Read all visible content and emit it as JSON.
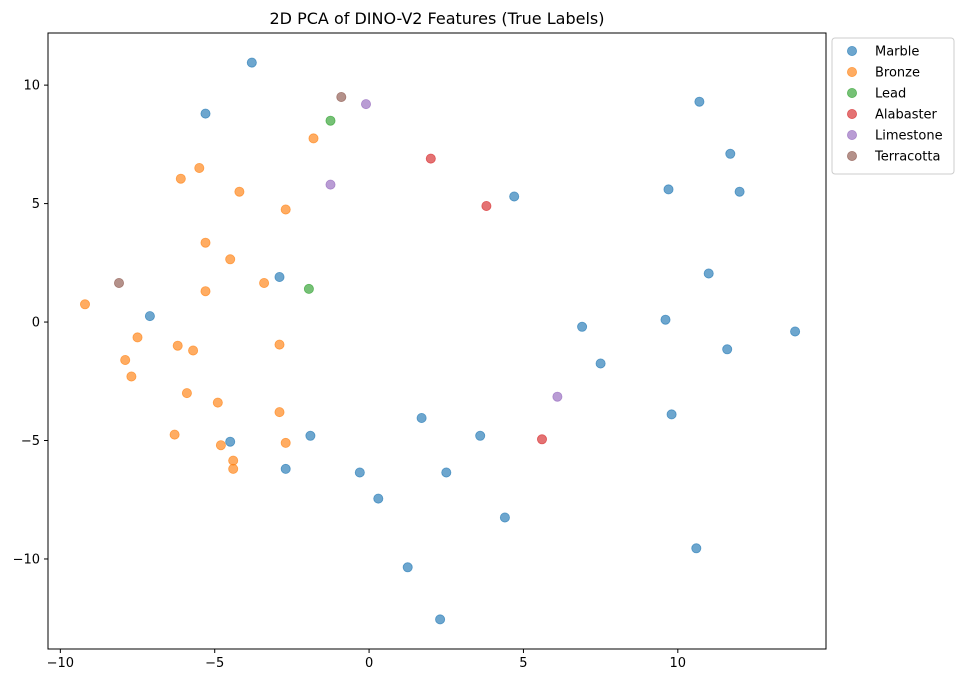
{
  "chart_data": {
    "type": "scatter",
    "title": "2D PCA of DINO-V2 Features (True Labels)",
    "xlabel": "",
    "ylabel": "",
    "xlim": [
      -10.4,
      14.8
    ],
    "ylim": [
      -13.8,
      12.2
    ],
    "xticks": [
      -10,
      -5,
      0,
      5,
      10
    ],
    "yticks": [
      -10,
      -5,
      0,
      5,
      10
    ],
    "xtick_labels": [
      "−10",
      "−5",
      "0",
      "5",
      "10"
    ],
    "ytick_labels": [
      "−10",
      "−5",
      "0",
      "5",
      "10"
    ],
    "grid": false,
    "legend_position": "outside top-right",
    "series": [
      {
        "name": "Marble",
        "color": "#1f77b4",
        "points": [
          [
            -3.8,
            10.95
          ],
          [
            -5.3,
            8.8
          ],
          [
            10.7,
            9.3
          ],
          [
            11.7,
            7.1
          ],
          [
            9.7,
            5.6
          ],
          [
            12.0,
            5.5
          ],
          [
            4.7,
            5.3
          ],
          [
            -2.9,
            1.9
          ],
          [
            11.0,
            2.05
          ],
          [
            -7.1,
            0.25
          ],
          [
            6.9,
            -0.2
          ],
          [
            9.6,
            0.1
          ],
          [
            13.8,
            -0.4
          ],
          [
            7.5,
            -1.75
          ],
          [
            11.6,
            -1.15
          ],
          [
            1.7,
            -4.05
          ],
          [
            9.8,
            -3.9
          ],
          [
            -4.5,
            -5.05
          ],
          [
            -1.9,
            -4.8
          ],
          [
            3.6,
            -4.8
          ],
          [
            -2.7,
            -6.2
          ],
          [
            -0.3,
            -6.35
          ],
          [
            2.5,
            -6.35
          ],
          [
            0.3,
            -7.45
          ],
          [
            4.4,
            -8.25
          ],
          [
            10.6,
            -9.55
          ],
          [
            1.25,
            -10.35
          ],
          [
            2.3,
            -12.55
          ]
        ]
      },
      {
        "name": "Bronze",
        "color": "#ff7f0e",
        "points": [
          [
            -1.8,
            7.75
          ],
          [
            -5.5,
            6.5
          ],
          [
            -6.1,
            6.05
          ],
          [
            -4.2,
            5.5
          ],
          [
            -2.7,
            4.75
          ],
          [
            -5.3,
            3.35
          ],
          [
            -4.5,
            2.65
          ],
          [
            -3.4,
            1.65
          ],
          [
            -5.3,
            1.3
          ],
          [
            -9.2,
            0.75
          ],
          [
            -7.5,
            -0.65
          ],
          [
            -2.9,
            -0.95
          ],
          [
            -6.2,
            -1.0
          ],
          [
            -5.7,
            -1.2
          ],
          [
            -7.9,
            -1.6
          ],
          [
            -7.7,
            -2.3
          ],
          [
            -5.9,
            -3.0
          ],
          [
            -4.9,
            -3.4
          ],
          [
            -2.9,
            -3.8
          ],
          [
            -6.3,
            -4.75
          ],
          [
            -4.8,
            -5.2
          ],
          [
            -2.7,
            -5.1
          ],
          [
            -4.4,
            -5.85
          ],
          [
            -4.4,
            -6.2
          ]
        ]
      },
      {
        "name": "Lead",
        "color": "#2ca02c",
        "points": [
          [
            -1.25,
            8.5
          ],
          [
            -1.95,
            1.4
          ]
        ]
      },
      {
        "name": "Alabaster",
        "color": "#d62728",
        "points": [
          [
            2.0,
            6.9
          ],
          [
            3.8,
            4.9
          ],
          [
            5.6,
            -4.95
          ]
        ]
      },
      {
        "name": "Limestone",
        "color": "#9467bd",
        "points": [
          [
            -0.1,
            9.2
          ],
          [
            -1.25,
            5.8
          ],
          [
            6.1,
            -3.15
          ]
        ]
      },
      {
        "name": "Terracotta",
        "color": "#8c564b",
        "points": [
          [
            -0.9,
            9.5
          ],
          [
            -8.1,
            1.65
          ]
        ]
      }
    ]
  }
}
